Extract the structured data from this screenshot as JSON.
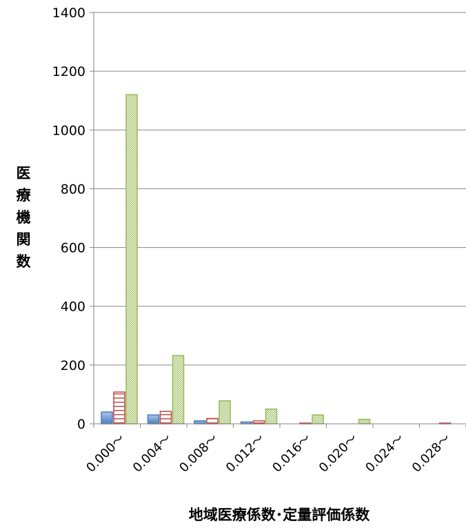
{
  "chart_data": {
    "type": "bar",
    "title": "",
    "xlabel": "地域医療係数･定量評価係数",
    "ylabel": "医療機関数",
    "ylim": [
      0,
      1400
    ],
    "yticks": [
      0,
      200,
      400,
      600,
      800,
      1000,
      1200,
      1400
    ],
    "grid": true,
    "legend": "none",
    "categories": [
      "0.000～",
      "0.004～",
      "0.008～",
      "0.012～",
      "0.016～",
      "0.020～",
      "0.024～",
      "0.028～"
    ],
    "series": [
      {
        "values": [
          40,
          30,
          10,
          6,
          0,
          0,
          0,
          0
        ],
        "color": "#4f81bd",
        "pattern": "solid"
      },
      {
        "values": [
          108,
          42,
          18,
          10,
          2,
          0,
          0,
          2
        ],
        "color": "#c0504d",
        "pattern": "horizontal-lines"
      },
      {
        "values": [
          1120,
          232,
          78,
          50,
          30,
          15,
          0,
          0
        ],
        "color": "#9bbb59",
        "pattern": "dots"
      }
    ]
  }
}
